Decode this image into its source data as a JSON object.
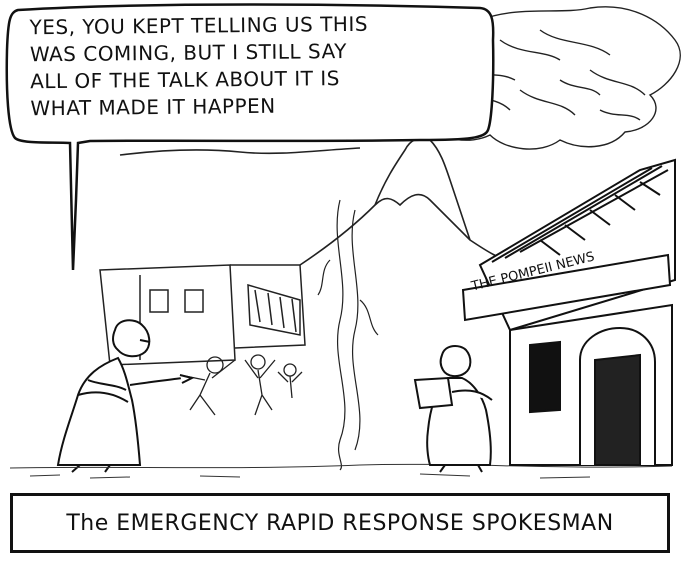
{
  "speech": {
    "text": "YES, YOU KEPT TELLING US THIS\nWAS COMING, BUT I STILL SAY\nALL OF THE TALK ABOUT IT IS\nWHAT MADE IT HAPPEN"
  },
  "sign": {
    "text": "THE POMPEII NEWS"
  },
  "caption": {
    "text": "The EMERGENCY RAPID RESPONSE SPOKESMAN"
  }
}
